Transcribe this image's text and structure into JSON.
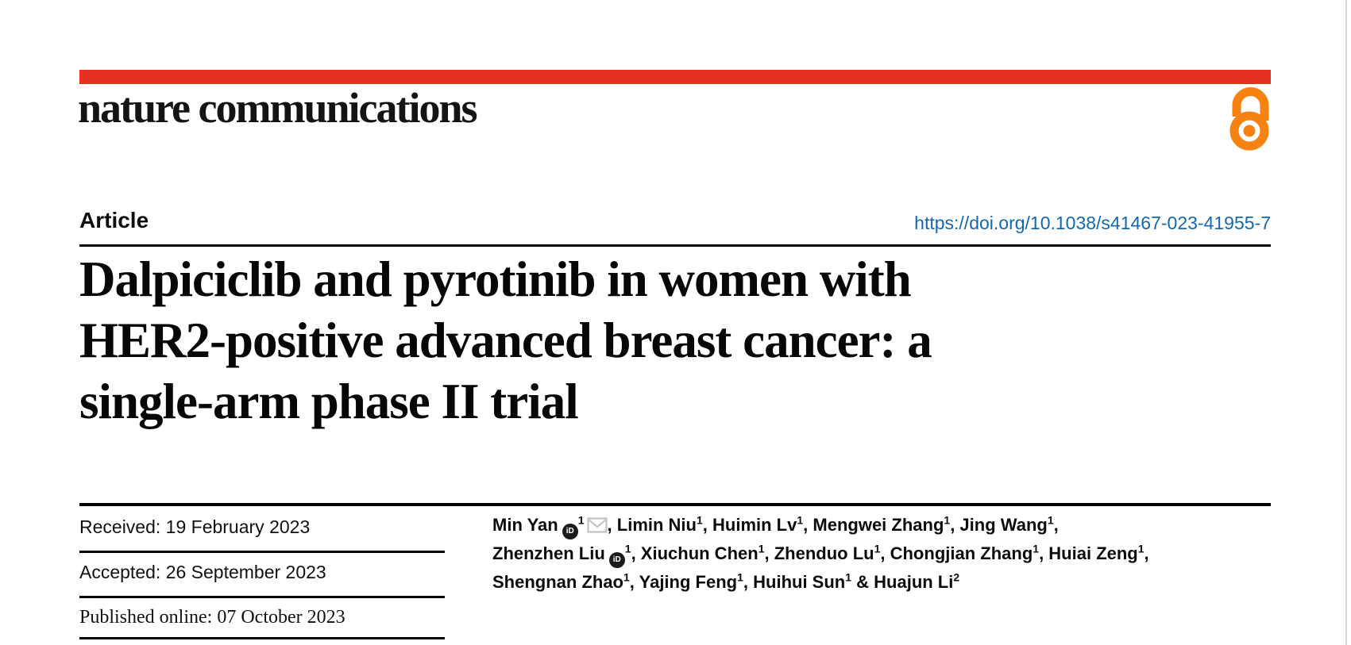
{
  "page": {
    "background": "#ffffff",
    "edge_line_color": "#d8d8d8"
  },
  "brand": {
    "bar_color": "#e63122",
    "logo_text": "nature communications",
    "open_access_icon": "open-padlock-icon",
    "open_access_color": "#f68212"
  },
  "article_header": {
    "label": "Article",
    "doi": "https://doi.org/10.1038/s41467-023-41955-7",
    "link_color": "#1268b0"
  },
  "title": {
    "lines": [
      "Dalpiciclib and pyrotinib in women with",
      "HER2-positive advanced breast cancer: a",
      "single-arm phase II trial"
    ]
  },
  "history": {
    "received_label": "Received:",
    "received_date": "19 February 2023",
    "accepted_label": "Accepted:",
    "accepted_date": "26 September 2023",
    "published_label": "Published online:",
    "published_date": "07 October 2023"
  },
  "authors": {
    "list": [
      {
        "name": "Min Yan",
        "affiliation": "1",
        "orcid": true,
        "email": true
      },
      {
        "name": "Limin Niu",
        "affiliation": "1"
      },
      {
        "name": "Huimin Lv",
        "affiliation": "1"
      },
      {
        "name": "Mengwei Zhang",
        "affiliation": "1"
      },
      {
        "name": "Jing Wang",
        "affiliation": "1",
        "break_after": true
      },
      {
        "name": "Zhenzhen Liu",
        "affiliation": "1",
        "orcid": true
      },
      {
        "name": "Xiuchun Chen",
        "affiliation": "1"
      },
      {
        "name": "Zhenduo Lu",
        "affiliation": "1"
      },
      {
        "name": "Chongjian Zhang",
        "affiliation": "1"
      },
      {
        "name": "Huiai Zeng",
        "affiliation": "1",
        "break_after": true
      },
      {
        "name": "Shengnan Zhao",
        "affiliation": "1"
      },
      {
        "name": "Yajing Feng",
        "affiliation": "1"
      },
      {
        "name": "Huihui Sun",
        "affiliation": "1"
      },
      {
        "name": "Huajun Li",
        "affiliation": "2"
      }
    ],
    "orcid_icon": "iD",
    "email_icon": "envelope"
  }
}
